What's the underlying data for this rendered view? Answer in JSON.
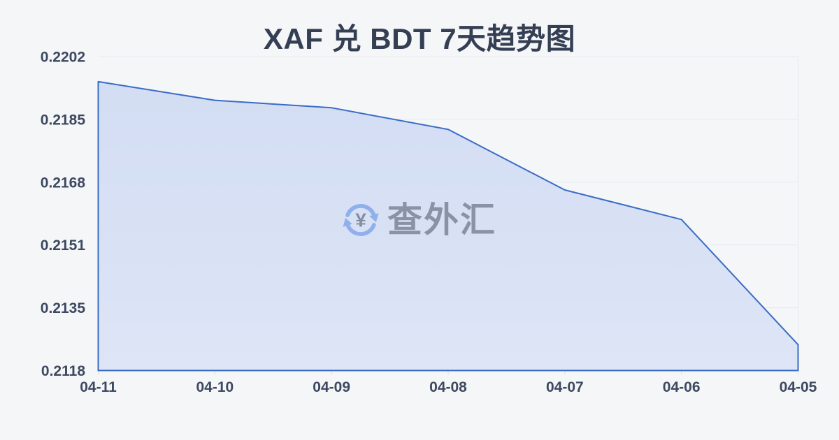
{
  "chart": {
    "watermark": {
      "text": "查外汇",
      "icon": "currency-exchange-icon",
      "icon_color": "#8fb0ed",
      "yen_color": "#848ea4"
    }
  },
  "chart_data": {
    "type": "area",
    "title": "XAF 兑 BDT 7天趋势图",
    "categories": [
      "04-11",
      "04-10",
      "04-09",
      "04-08",
      "04-07",
      "04-06",
      "04-05"
    ],
    "values": [
      0.21953,
      0.21903,
      0.21883,
      0.21825,
      0.21663,
      0.21584,
      0.21249
    ],
    "xlabel": "",
    "ylabel": "",
    "ylim": [
      0.2118,
      0.2202
    ],
    "yticks": [
      "0.2202",
      "0.2185",
      "0.2168",
      "0.2151",
      "0.2135",
      "0.2118"
    ],
    "grid": true,
    "legend": false,
    "colors": {
      "background": "#f5f6f8",
      "line": "#3a6cc5",
      "fill_top": "#d3ddf3",
      "fill_bottom": "#dde5f6",
      "gridline": "#e6e9ee",
      "tick": "#d9dde3",
      "axis_label": "#3d4960",
      "title": "#353f54"
    }
  }
}
